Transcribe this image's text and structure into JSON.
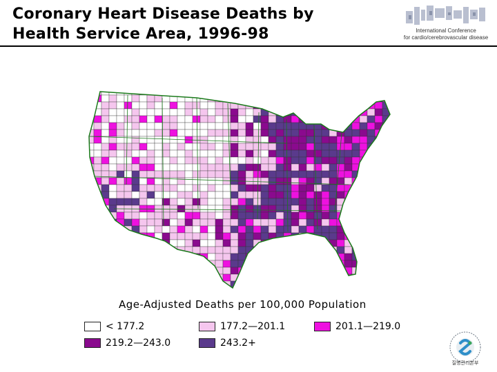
{
  "title_line1": "Coronary Heart Disease Deaths by",
  "title_line2": "Health Service Area, 1996-98",
  "conference": {
    "line1": "International Conference",
    "line2": "for cardio/cerebrovascular disease"
  },
  "map_fills": {
    "cat1": "#ffffff",
    "cat2": "#f5c6ee",
    "cat3": "#ee11e0",
    "cat4": "#8a0a8e",
    "cat5": "#5a3a8c"
  },
  "legend": {
    "title": "Age-Adjusted Deaths per 100,000 Population",
    "items": [
      {
        "label": "< 177.2",
        "color": "#ffffff"
      },
      {
        "label": "177.2—201.1",
        "color": "#f5c6ee"
      },
      {
        "label": "201.1—219.0",
        "color": "#ee11e0"
      },
      {
        "label": "219.2—243.0",
        "color": "#8a0a8e"
      },
      {
        "label": "243.2+",
        "color": "#5a3a8c"
      }
    ]
  },
  "logo_text": "질병관리본부"
}
